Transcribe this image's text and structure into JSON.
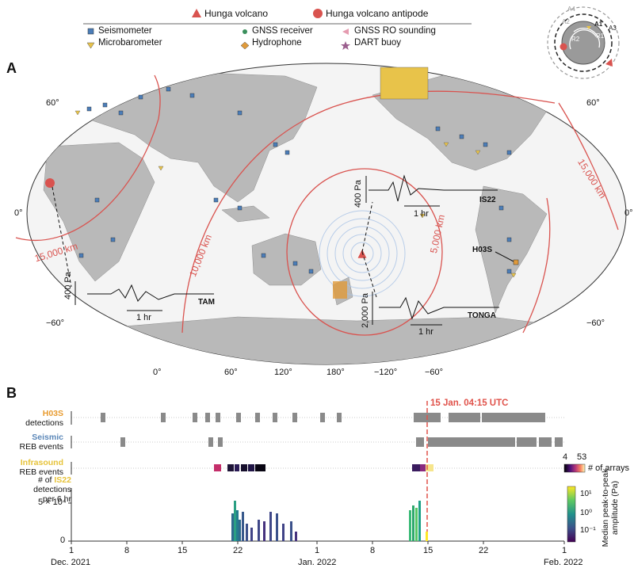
{
  "panel_a": {
    "letter": "A",
    "legend": {
      "volcano": "Hunga volcano",
      "antipode": "Hunga volcano antipode",
      "items": [
        {
          "icon": "blue-square",
          "label": "Seismometer"
        },
        {
          "icon": "green-dot",
          "label": "GNSS receiver"
        },
        {
          "icon": "pink-triangle",
          "label": "GNSS RO sounding"
        },
        {
          "icon": "yellow-triangle",
          "label": "Microbarometer"
        },
        {
          "icon": "orange-diamond",
          "label": "Hydrophone"
        },
        {
          "icon": "purple-star",
          "label": "DART buoy"
        }
      ]
    },
    "lat_labels_left": [
      "60°",
      "0°",
      "−60°"
    ],
    "lat_labels_right": [
      "60°",
      "0°",
      "−60°"
    ],
    "lon_labels": [
      "0°",
      "60°",
      "120°",
      "180°",
      "−120°",
      "−60°"
    ],
    "distance_labels": [
      "5,000 km",
      "10,000 km",
      "15,000 km",
      "15,000 km"
    ],
    "waveforms": [
      {
        "station": "TAM",
        "scale": "400 Pa",
        "time": "1 hr"
      },
      {
        "station": "IS22",
        "scale": "400 Pa",
        "time": "1 hr"
      },
      {
        "station": "TONGA",
        "scale": "2,000 Pa",
        "time": "1 hr"
      }
    ],
    "h03s_label": "H03S",
    "inset": {
      "labels": [
        "A4",
        "A2",
        "A1",
        "A3",
        "R2",
        "R1"
      ]
    }
  },
  "panel_b": {
    "letter": "B",
    "event_label": "15 Jan. 04:15 UTC",
    "rows": [
      {
        "title": "H03S",
        "sub": "detections"
      },
      {
        "title": "Seismic",
        "sub": "REB events"
      },
      {
        "title": "Infrasound",
        "sub": "REB events"
      }
    ],
    "colorbar1": {
      "min": "4",
      "max": "53",
      "label": "# of arrays"
    },
    "colorbar2": {
      "label": "Median peak-to-peak amplitude (Pa)",
      "ticks": [
        "10¹",
        "10⁰",
        "10⁻¹"
      ]
    },
    "hist_ylabel": [
      "# of IS22",
      "detections",
      "per 6 hr"
    ],
    "hist_ylabel_highlight": "IS22",
    "hist_yticks": [
      "5 × 10⁴",
      "0"
    ],
    "xticks": [
      "1",
      "8",
      "15",
      "22",
      "1",
      "8",
      "15",
      "22",
      "1"
    ],
    "xmonths": [
      "Dec. 2021",
      "Jan. 2022",
      "Feb. 2022"
    ]
  },
  "colors": {
    "ocean": "#f4f4f4",
    "land": "#b9b9b9",
    "seismometer": "#4b7db8",
    "microbarometer": "#e8c34a",
    "contour": "#d9534f",
    "event_line": "#e0524a",
    "bar_gray": "#8a8a8a"
  }
}
